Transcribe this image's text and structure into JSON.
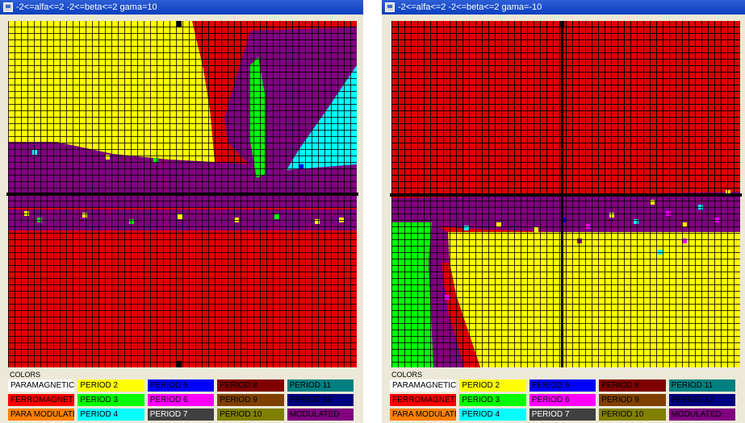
{
  "windows": [
    {
      "title": "-2<=alfa<=2  -2<=beta<=2 gama=10",
      "colors_label": "COLORS"
    },
    {
      "title": "-2<=alfa<=2  -2<=beta<=2 gama=-10",
      "colors_label": "COLORS"
    }
  ],
  "legend": [
    {
      "label": "PARAMAGNETIC",
      "bg": "#ffffff",
      "fg": "#000000"
    },
    {
      "label": "PERIOD 2",
      "bg": "#ffff00",
      "fg": "#000000"
    },
    {
      "label": "PERIOD 5",
      "bg": "#0000ff",
      "fg": "#000000"
    },
    {
      "label": "PERIOD 8",
      "bg": "#800000",
      "fg": "#000000"
    },
    {
      "label": "PERIOD 11",
      "bg": "#008080",
      "fg": "#000000"
    },
    {
      "label": "FERROMAGNETIC",
      "bg": "#ff0000",
      "fg": "#000000"
    },
    {
      "label": "PERIOD 3",
      "bg": "#00ff00",
      "fg": "#000000"
    },
    {
      "label": "PERIOD 6",
      "bg": "#ff00ff",
      "fg": "#000000"
    },
    {
      "label": "PERIOD 9",
      "bg": "#804000",
      "fg": "#000000"
    },
    {
      "label": "PERIOD 12",
      "bg": "#000080",
      "fg": "#000000"
    },
    {
      "label": "PARA MODULATED",
      "bg": "#ff8000",
      "fg": "#000000"
    },
    {
      "label": "PERIOD 4",
      "bg": "#00ffff",
      "fg": "#000000"
    },
    {
      "label": "PERIOD 7",
      "bg": "#404040",
      "fg": "#ffffff"
    },
    {
      "label": "PERIOD 10",
      "bg": "#808000",
      "fg": "#000000"
    },
    {
      "label": "MODULATED",
      "bg": "#800080",
      "fg": "#000000"
    }
  ]
}
